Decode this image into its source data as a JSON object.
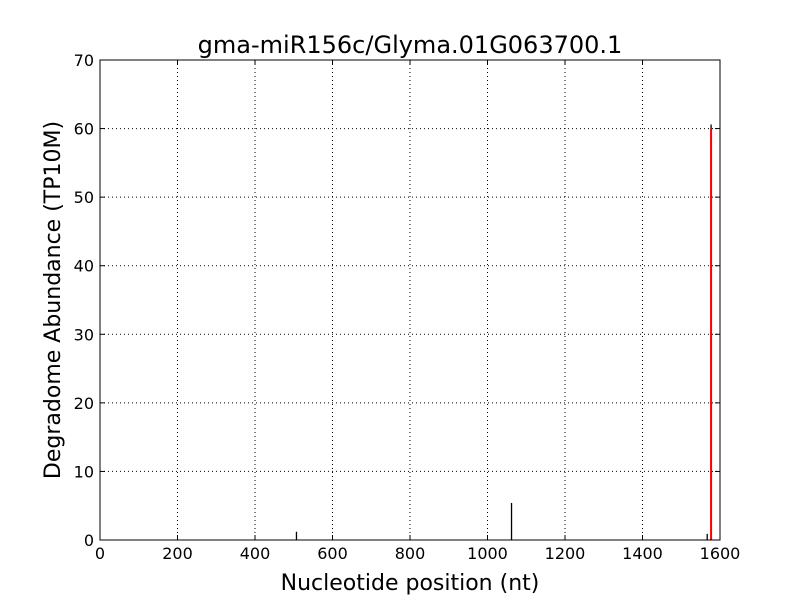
{
  "chart_data": {
    "type": "bar",
    "title": "gma-miR156c/Glyma.01G063700.1",
    "xlabel": "Nucleotide position (nt)",
    "ylabel": "Degradome Abundance (TP10M)",
    "xlim": [
      0,
      1600
    ],
    "ylim": [
      0,
      70
    ],
    "xticks": [
      0,
      200,
      400,
      600,
      800,
      1000,
      1200,
      1400,
      1600
    ],
    "yticks": [
      0,
      10,
      20,
      30,
      40,
      50,
      60,
      70
    ],
    "grid": true,
    "series": [
      {
        "color": "#000000",
        "x": [
          507,
          1062,
          1567,
          1577
        ],
        "values": [
          1.2,
          5.4,
          0.9,
          60.6
        ]
      },
      {
        "color": "#ff0000",
        "x": [
          1577
        ],
        "values": [
          60.0
        ]
      }
    ]
  }
}
